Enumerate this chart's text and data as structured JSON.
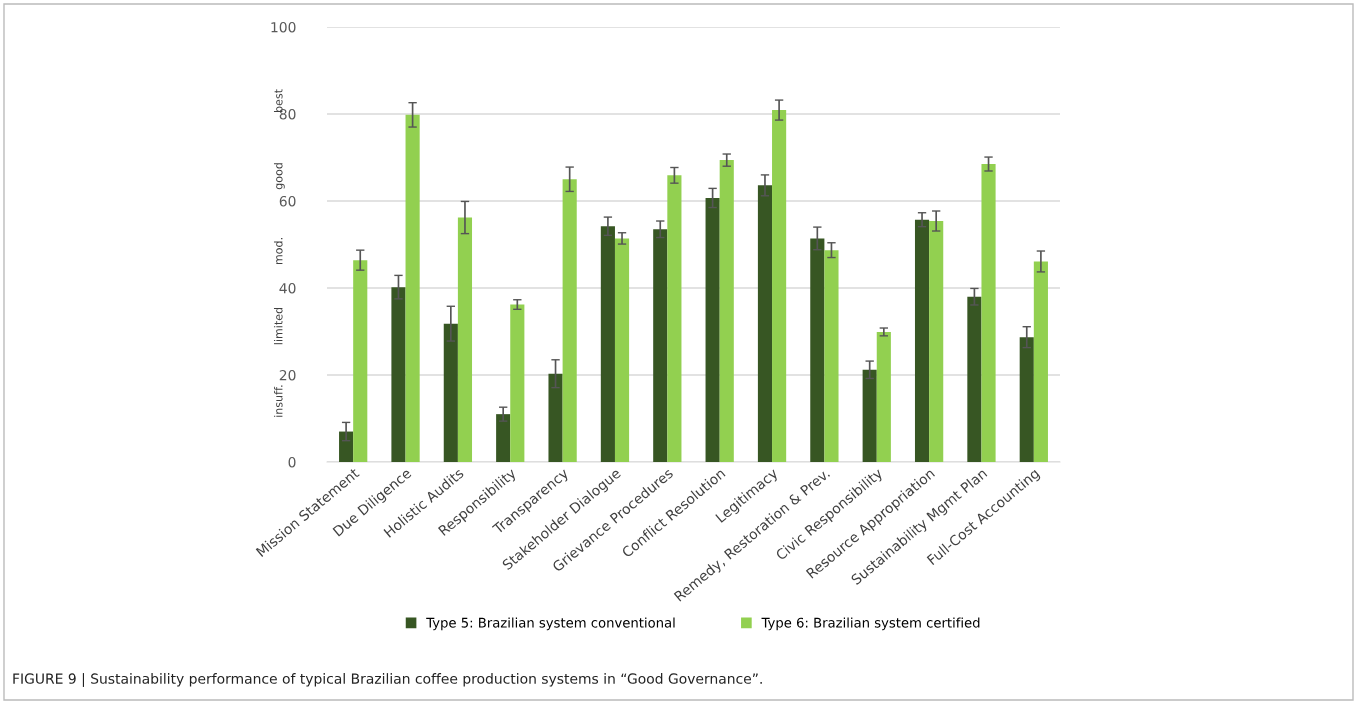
{
  "chart_data": {
    "type": "bar",
    "categories": [
      "Mission Statement",
      "Due Diligence",
      "Holistic Audits",
      "Responsibility",
      "Transparency",
      "Stakeholder Dialogue",
      "Grievance Procedures",
      "Conflict Resolution",
      "Legitimacy",
      "Remedy, Restoration & Prev.",
      "Civic Responsibility",
      "Resource Appropriation",
      "Sustainability Mgmt Plan",
      "Full-Cost Accounting"
    ],
    "series": [
      {
        "name": "Type 5: Brazilian system conventional",
        "color": "#375623",
        "values": [
          7.0,
          40.2,
          31.8,
          11.0,
          20.3,
          54.2,
          53.5,
          60.7,
          63.6,
          51.4,
          21.2,
          55.7,
          38.0,
          28.7
        ],
        "errors": [
          2.1,
          2.7,
          4.0,
          1.6,
          3.2,
          2.1,
          1.9,
          2.2,
          2.4,
          2.6,
          2.0,
          1.6,
          1.9,
          2.4
        ]
      },
      {
        "name": "Type 6: Brazilian system certified",
        "color": "#92d050",
        "values": [
          46.4,
          79.8,
          56.2,
          36.2,
          65.0,
          51.4,
          65.9,
          69.4,
          80.9,
          48.7,
          29.9,
          55.4,
          68.5,
          46.1
        ],
        "errors": [
          2.3,
          2.8,
          3.7,
          1.1,
          2.8,
          1.3,
          1.8,
          1.4,
          2.3,
          1.7,
          0.9,
          2.3,
          1.6,
          2.4
        ]
      }
    ],
    "ylim": [
      0,
      100
    ],
    "yticks": [
      0,
      20,
      40,
      60,
      80,
      100
    ],
    "grid": "y",
    "legend": "bottom",
    "annotations": [
      "insuff.",
      "limited",
      "mod.",
      "good",
      "best",
      "FIGURE 9 | Sustainability performance of typical Brazilian coffee production systems in “Good Governance”."
    ]
  }
}
